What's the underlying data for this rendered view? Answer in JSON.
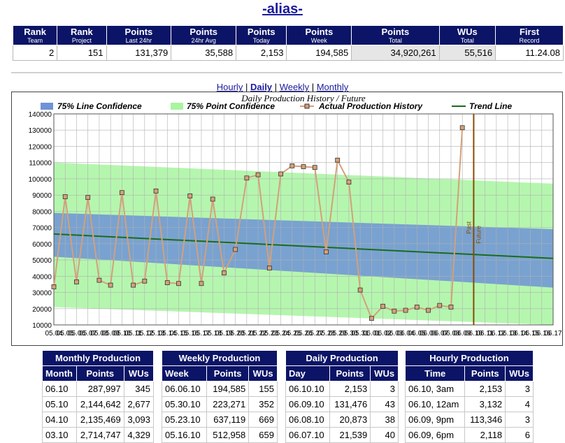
{
  "title": "-alias-",
  "stats": {
    "headers": [
      {
        "main": "Rank",
        "sub": "Team"
      },
      {
        "main": "Rank",
        "sub": "Project"
      },
      {
        "main": "Points",
        "sub": "Last 24hr"
      },
      {
        "main": "Points",
        "sub": "24hr Avg"
      },
      {
        "main": "Points",
        "sub": "Today"
      },
      {
        "main": "Points",
        "sub": "Week"
      },
      {
        "main": "Points",
        "sub": "Total"
      },
      {
        "main": "WUs",
        "sub": "Total"
      },
      {
        "main": "First",
        "sub": "Record"
      }
    ],
    "values": [
      "2",
      "151",
      "131,379",
      "35,588",
      "2,153",
      "194,585",
      "34,920,261",
      "55,516",
      "11.24.08"
    ]
  },
  "tabs": {
    "hourly": "Hourly",
    "daily": "Daily",
    "weekly": "Weekly",
    "monthly": "Monthly",
    "sep": "|"
  },
  "chart_data": {
    "type": "line",
    "title": "Daily Production History / Future",
    "legend": [
      "75% Line Confidence",
      "75% Point Confidence",
      "Actual Production History",
      "Trend Line"
    ],
    "legend_position": "top",
    "ylim": [
      10000,
      140000
    ],
    "yticks": [
      "10000",
      "20000",
      "30000",
      "40000",
      "50000",
      "60000",
      "70000",
      "80000",
      "90000",
      "100000",
      "110000",
      "120000",
      "130000",
      "140000"
    ],
    "xticks": [
      "05.04",
      "05.05",
      "05.06",
      "05.07",
      "05.08",
      "05.09",
      "05.10",
      "05.11",
      "05.12",
      "05.13",
      "05.14",
      "05.15",
      "05.16",
      "05.17",
      "05.18",
      "05.19",
      "05.20",
      "05.21",
      "05.22",
      "05.23",
      "05.24",
      "05.25",
      "05.26",
      "05.27",
      "05.28",
      "05.29",
      "05.30",
      "05.31",
      "06.01",
      "06.02",
      "06.03",
      "06.04",
      "06.05",
      "06.06",
      "06.07",
      "06.08",
      "06.09",
      "06.10",
      "06.11",
      "06.12",
      "06.13",
      "06.14",
      "06.15",
      "06.16",
      "06.17"
    ],
    "grid": true,
    "divider_labels": [
      "Past",
      "Future"
    ],
    "divider_x": "06.10",
    "series": [
      {
        "name": "Actual Production History",
        "x": [
          "05.04",
          "05.05",
          "05.06",
          "05.07",
          "05.08",
          "05.09",
          "05.10",
          "05.11",
          "05.12",
          "05.13",
          "05.14",
          "05.15",
          "05.16",
          "05.17",
          "05.18",
          "05.19",
          "05.20",
          "05.21",
          "05.22",
          "05.23",
          "05.24",
          "05.25",
          "05.26",
          "05.27",
          "05.28",
          "05.29",
          "05.30",
          "05.31",
          "06.01",
          "06.02",
          "06.03",
          "06.04",
          "06.05",
          "06.06",
          "06.07",
          "06.08",
          "06.09"
        ],
        "values": [
          33500,
          89000,
          36500,
          88500,
          37500,
          34500,
          91500,
          34500,
          37000,
          92500,
          36000,
          35500,
          89500,
          35500,
          87500,
          42000,
          56500,
          100500,
          102500,
          45000,
          103000,
          108000,
          107500,
          107000,
          55000,
          111500,
          98000,
          31500,
          14000,
          21500,
          18500,
          19000,
          21000,
          19000,
          22000,
          21000,
          131500
        ]
      },
      {
        "name": "Trend Line",
        "x": [
          "05.04",
          "06.17"
        ],
        "values": [
          66000,
          51000
        ]
      },
      {
        "name": "75% Line Confidence",
        "x": [
          "05.04",
          "06.17"
        ],
        "upper": [
          79000,
          69000
        ],
        "lower": [
          52000,
          33000
        ]
      },
      {
        "name": "75% Point Confidence",
        "x": [
          "05.04",
          "06.17"
        ],
        "upper": [
          110000,
          97000
        ],
        "lower": [
          21000,
          10000
        ]
      }
    ],
    "colors": {
      "line_conf": "#6f93d6",
      "point_conf": "#a8f5a0",
      "actual": "#d4a07a",
      "trend": "#1a6b1a",
      "divider": "#8a4a00"
    }
  },
  "monthly": {
    "caption": "Monthly Production",
    "headers": [
      "Month",
      "Points",
      "WUs"
    ],
    "rows": [
      [
        "06.10",
        "287,997",
        "345"
      ],
      [
        "05.10",
        "2,144,642",
        "2,677"
      ],
      [
        "04.10",
        "2,135,469",
        "3,093"
      ],
      [
        "03.10",
        "2,714,747",
        "4,329"
      ]
    ]
  },
  "weekly": {
    "caption": "Weekly Production",
    "headers": [
      "Week",
      "Points",
      "WUs"
    ],
    "rows": [
      [
        "06.06.10",
        "194,585",
        "155"
      ],
      [
        "05.30.10",
        "223,271",
        "352"
      ],
      [
        "05.23.10",
        "637,119",
        "669"
      ],
      [
        "05.16.10",
        "512,958",
        "659"
      ]
    ]
  },
  "daily": {
    "caption": "Daily Production",
    "headers": [
      "Day",
      "Points",
      "WUs"
    ],
    "rows": [
      [
        "06.10.10",
        "2,153",
        "3"
      ],
      [
        "06.09.10",
        "131,476",
        "43"
      ],
      [
        "06.08.10",
        "20,873",
        "38"
      ],
      [
        "06.07.10",
        "21,539",
        "40"
      ]
    ]
  },
  "hourly": {
    "caption": "Hourly Production",
    "headers": [
      "Time",
      "Points",
      "WUs"
    ],
    "rows": [
      [
        "06.10, 3am",
        "2,153",
        "3"
      ],
      [
        "06.10, 12am",
        "3,132",
        "4"
      ],
      [
        "06.09, 9pm",
        "113,346",
        "3"
      ],
      [
        "06.09, 6pm",
        "2,118",
        "6"
      ]
    ]
  }
}
